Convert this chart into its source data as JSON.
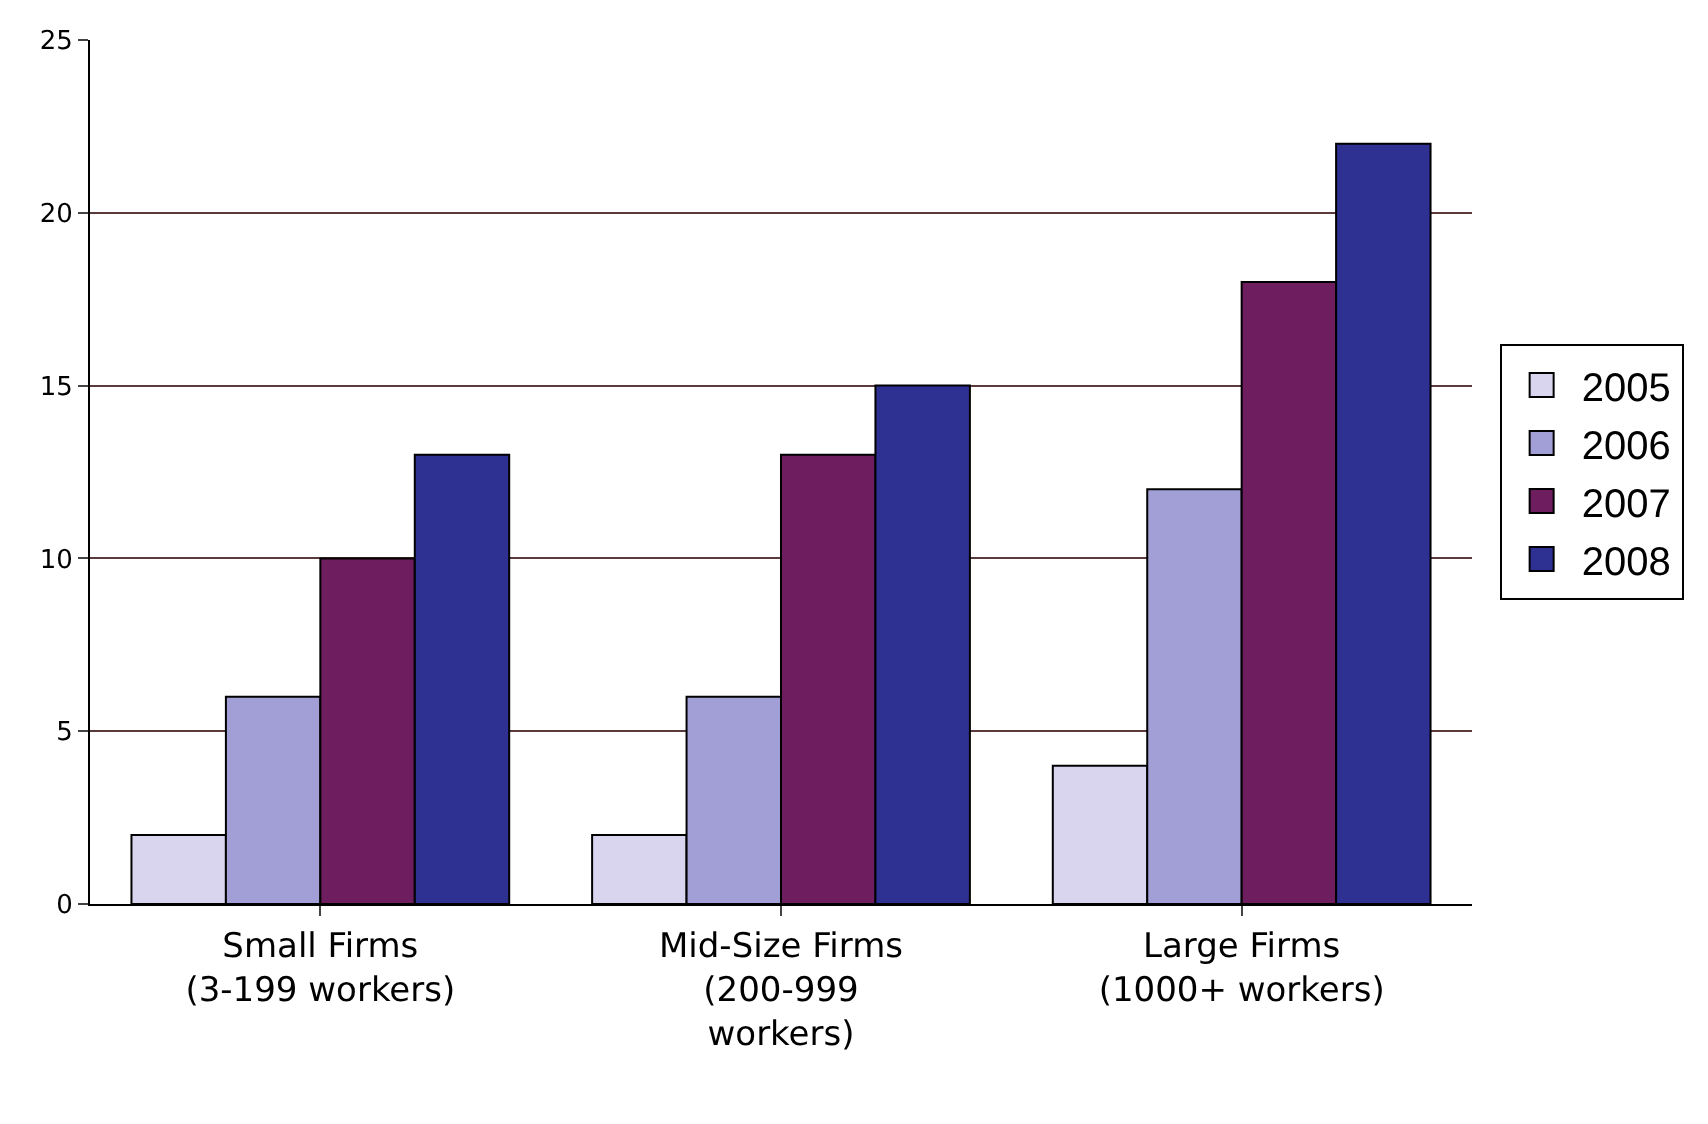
{
  "chart_data": {
    "type": "bar",
    "categories": [
      "Small Firms\n(3-199 workers)",
      "Mid-Size Firms\n(200-999\nworkers)",
      "Large Firms\n(1000+ workers)"
    ],
    "series": [
      {
        "name": "2005",
        "color": "#d9d5ee",
        "values": [
          2,
          2,
          4
        ]
      },
      {
        "name": "2006",
        "color": "#a19fd6",
        "values": [
          6,
          6,
          12
        ]
      },
      {
        "name": "2007",
        "color": "#6e1d5e",
        "values": [
          10,
          13,
          18
        ]
      },
      {
        "name": "2008",
        "color": "#2e3192",
        "values": [
          13,
          15,
          22
        ]
      }
    ],
    "ylim": [
      0,
      25
    ],
    "yticks": [
      0,
      5,
      10,
      15,
      20,
      25
    ],
    "grid": "y",
    "legend": "right"
  }
}
